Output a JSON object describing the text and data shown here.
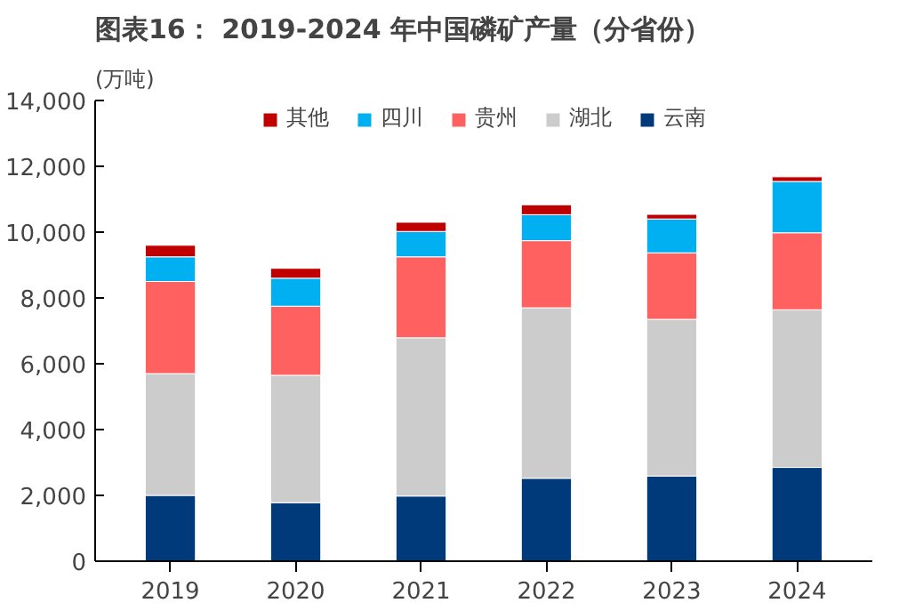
{
  "chart_data": {
    "type": "bar",
    "stacked": true,
    "title": "图表16： 2019-2024 年中国磷矿产量（分省份）",
    "ylabel": "(万吨)",
    "categories": [
      "2019",
      "2020",
      "2021",
      "2022",
      "2023",
      "2024"
    ],
    "series": [
      {
        "name": "云南",
        "color": "#003a7a",
        "values": [
          2000,
          1780,
          1980,
          2520,
          2590,
          2850
        ]
      },
      {
        "name": "湖北",
        "color": "#cccccc",
        "values": [
          3700,
          3870,
          4810,
          5180,
          4760,
          4790
        ]
      },
      {
        "name": "贵州",
        "color": "#ff6161",
        "values": [
          2800,
          2100,
          2460,
          2040,
          2020,
          2340
        ]
      },
      {
        "name": "四川",
        "color": "#00b0f0",
        "values": [
          750,
          850,
          770,
          790,
          1030,
          1560
        ]
      },
      {
        "name": "其他",
        "color": "#c00000",
        "values": [
          350,
          300,
          280,
          300,
          140,
          140
        ]
      }
    ],
    "ylim": [
      0,
      14000
    ],
    "yticks": [
      0,
      {
        "value": 2000,
        "label": "2,000"
      },
      {
        "value": 4000,
        "label": "4,000"
      },
      {
        "value": 6000,
        "label": "6,000"
      },
      {
        "value": 8000,
        "label": "8,000"
      },
      {
        "value": 10000,
        "label": "10,000"
      },
      {
        "value": 12000,
        "label": "12,000"
      },
      {
        "value": 14000,
        "label": "14,000"
      }
    ],
    "grid": false,
    "legend": "top"
  }
}
